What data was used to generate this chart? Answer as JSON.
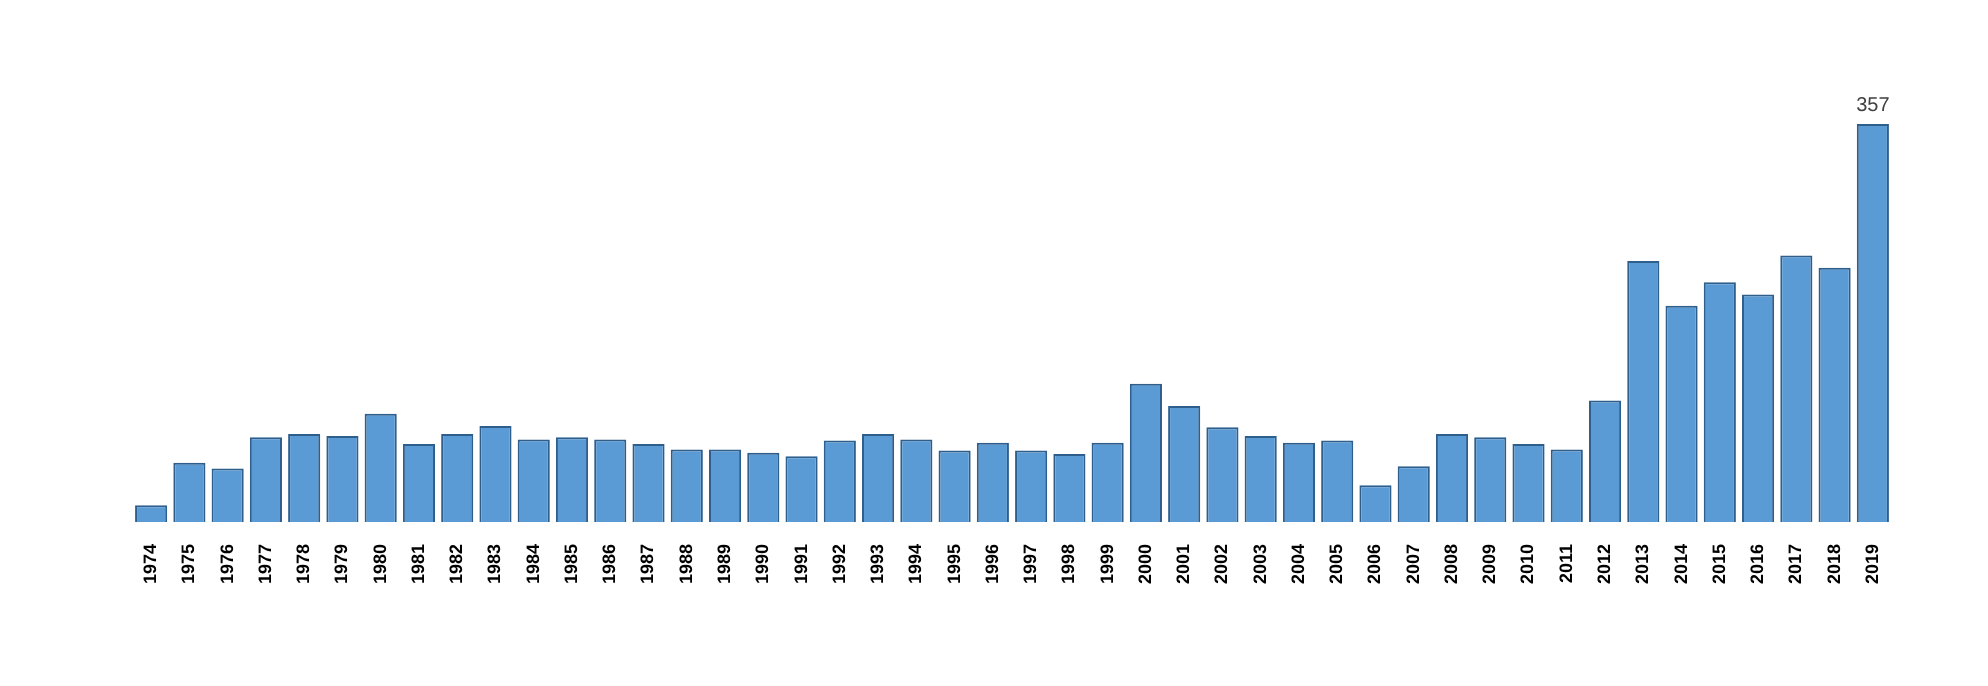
{
  "chart_data": {
    "type": "bar",
    "categories": [
      "1974",
      "1975",
      "1976",
      "1977",
      "1978",
      "1979",
      "1980",
      "1981",
      "1982",
      "1983",
      "1984",
      "1985",
      "1986",
      "1987",
      "1988",
      "1989",
      "1990",
      "1991",
      "1992",
      "1993",
      "1994",
      "1995",
      "1996",
      "1997",
      "1998",
      "1999",
      "2000",
      "2001",
      "2002",
      "2003",
      "2004",
      "2005",
      "2006",
      "2007",
      "2008",
      "2009",
      "2010",
      "2011",
      "2012",
      "2013",
      "2014",
      "2015",
      "2016",
      "2017",
      "2018",
      "2019"
    ],
    "values": [
      15,
      53,
      48,
      76,
      79,
      77,
      97,
      70,
      79,
      86,
      74,
      76,
      74,
      70,
      65,
      65,
      62,
      59,
      73,
      79,
      74,
      64,
      71,
      64,
      61,
      71,
      124,
      104,
      85,
      77,
      71,
      73,
      33,
      50,
      79,
      76,
      70,
      65,
      109,
      234,
      194,
      215,
      204,
      239,
      228,
      357
    ],
    "value_labels": [
      null,
      null,
      null,
      null,
      null,
      null,
      null,
      null,
      null,
      null,
      null,
      null,
      null,
      null,
      null,
      null,
      null,
      null,
      null,
      null,
      null,
      null,
      null,
      null,
      null,
      null,
      null,
      null,
      null,
      null,
      null,
      null,
      null,
      null,
      null,
      null,
      null,
      null,
      null,
      null,
      null,
      null,
      null,
      null,
      null,
      "357"
    ],
    "color": "#5b9bd5"
  }
}
